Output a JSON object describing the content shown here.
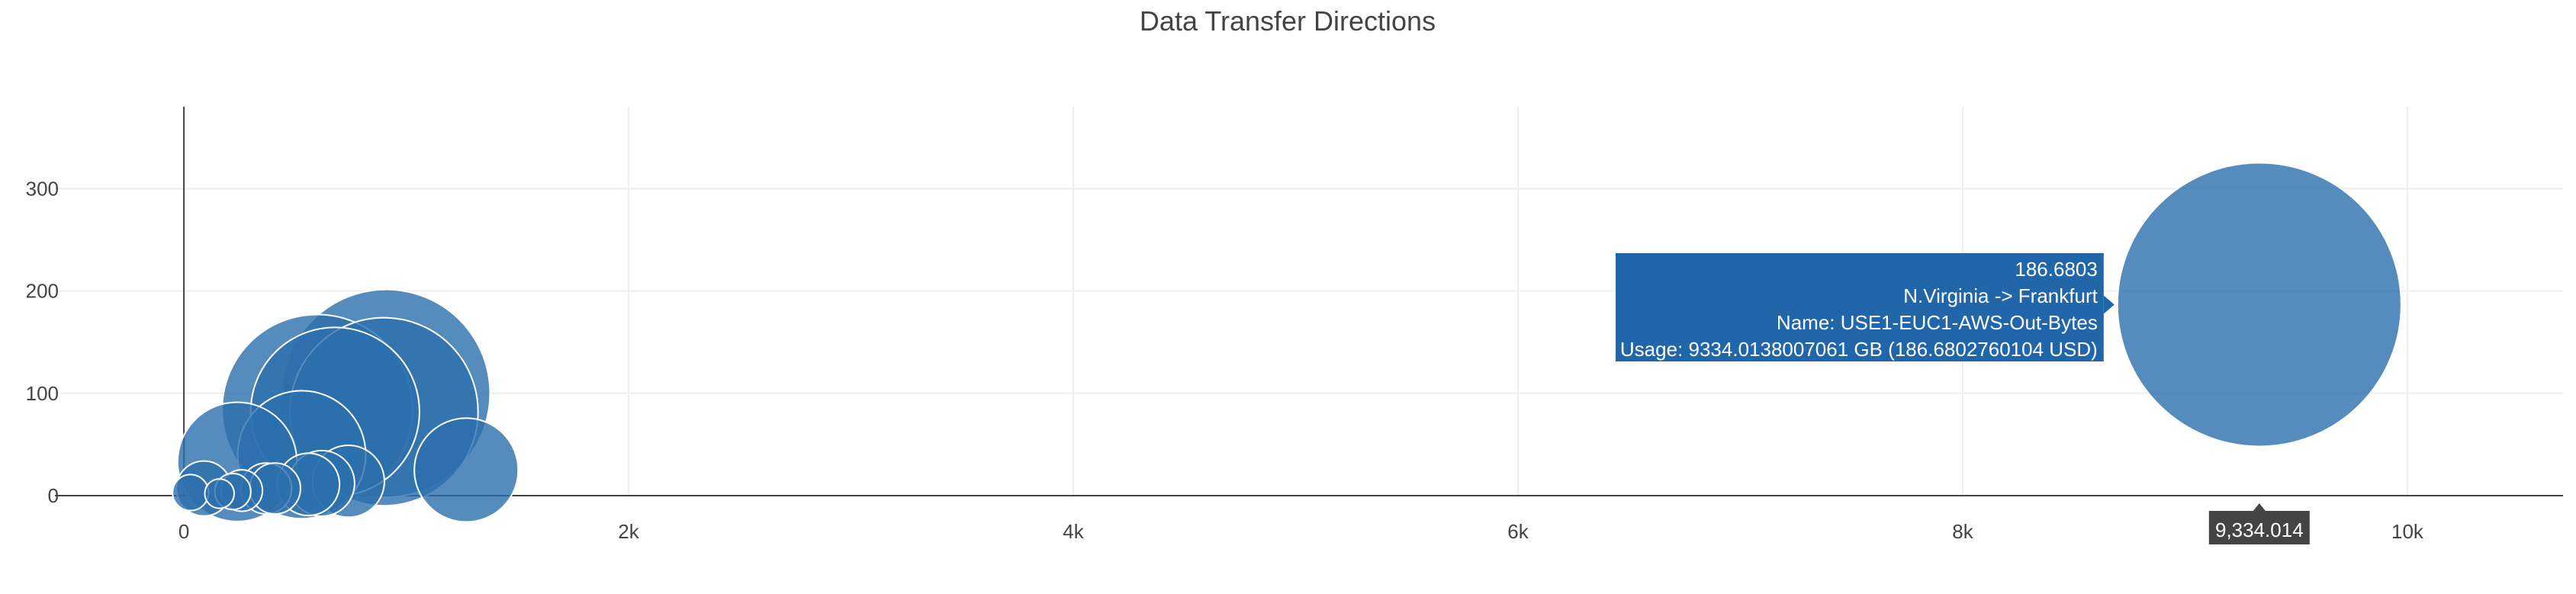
{
  "chart_data": {
    "type": "scatter",
    "title": "Data Transfer Directions",
    "xlabel": "",
    "ylabel": "",
    "xlim": [
      -580,
      10700
    ],
    "ylim": [
      0,
      380
    ],
    "x_ticks": [
      {
        "value": 0,
        "label": "0"
      },
      {
        "value": 2000,
        "label": "2k"
      },
      {
        "value": 4000,
        "label": "4k"
      },
      {
        "value": 6000,
        "label": "6k"
      },
      {
        "value": 8000,
        "label": "8k"
      },
      {
        "value": 10000,
        "label": "10k"
      }
    ],
    "y_ticks": [
      {
        "value": 0,
        "label": "0"
      },
      {
        "value": 100,
        "label": "100"
      },
      {
        "value": 200,
        "label": "200"
      },
      {
        "value": 300,
        "label": "300"
      }
    ],
    "grid": true,
    "marker_color": "#2c6fad",
    "bubbles": [
      {
        "x": 9334.014,
        "y": 186.68,
        "size": 186.68
      },
      {
        "x": 910,
        "y": 100,
        "size": 100
      },
      {
        "x": 900,
        "y": 82,
        "size": 82
      },
      {
        "x": 600,
        "y": 84,
        "size": 84
      },
      {
        "x": 680,
        "y": 82,
        "size": 66
      },
      {
        "x": 530,
        "y": 40,
        "size": 38
      },
      {
        "x": 1270,
        "y": 25,
        "size": 25
      },
      {
        "x": 240,
        "y": 33,
        "size": 33
      },
      {
        "x": 740,
        "y": 14,
        "size": 12
      },
      {
        "x": 620,
        "y": 12,
        "size": 10
      },
      {
        "x": 560,
        "y": 11,
        "size": 9
      },
      {
        "x": 90,
        "y": 7,
        "size": 7
      },
      {
        "x": 370,
        "y": 7,
        "size": 6
      },
      {
        "x": 410,
        "y": 7,
        "size": 6
      },
      {
        "x": 260,
        "y": 5,
        "size": 4
      },
      {
        "x": 220,
        "y": 4,
        "size": 3
      },
      {
        "x": 30,
        "y": 3,
        "size": 3
      },
      {
        "x": 160,
        "y": 2,
        "size": 2
      }
    ],
    "hover": {
      "value": "186.6803",
      "route": "N.Virginia -> Frankfurt",
      "name": "Name: USE1-EUC1-AWS-Out-Bytes",
      "usage": "Usage: 9334.0138007061 GB (186.6802760104 USD)",
      "x_label": "9,334.014"
    }
  }
}
